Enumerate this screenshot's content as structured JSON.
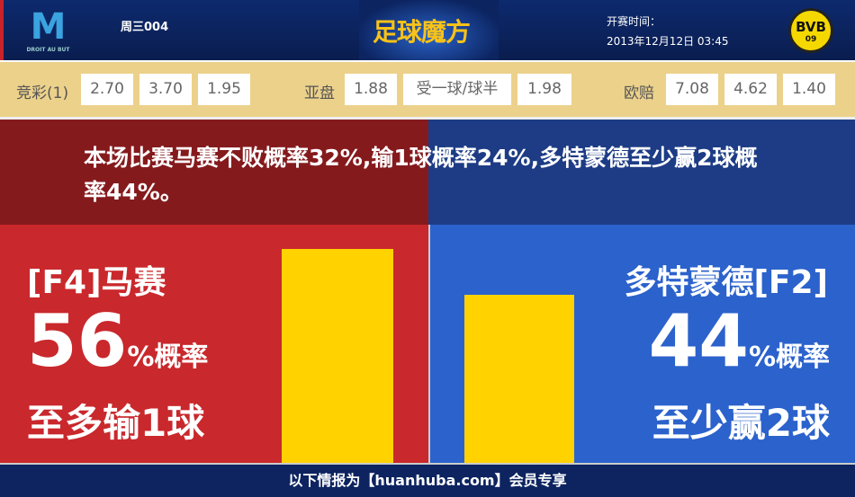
{
  "header": {
    "home_logo_text": "DROIT AU BUT",
    "match_no": "周三004",
    "brand": "足球魔方",
    "time_label": "开赛时间：",
    "time_value": "2013年12月12日 03:45",
    "away_logo_text": "BVB",
    "away_logo_sub": "09"
  },
  "odds": {
    "jingcai_label": "竞彩(1)",
    "jingcai": [
      "2.70",
      "3.70",
      "1.95"
    ],
    "yapan_label": "亚盘",
    "yapan": [
      "1.88",
      "受一球/球半",
      "1.98"
    ],
    "ouzhou_label": "欧赔",
    "ouzhou": [
      "7.08",
      "4.62",
      "1.40"
    ]
  },
  "summary": "本场比赛马赛不败概率32%,输1球概率24%,多特蒙德至少赢2球概率44%。",
  "home": {
    "team": "[F4]马赛",
    "percent": 56,
    "percent_text": "56",
    "unit": "%概率",
    "outcome": "至多输1球",
    "color": "#c9282c"
  },
  "away": {
    "team": "多特蒙德[F2]",
    "percent": 44,
    "percent_text": "44",
    "unit": "%概率",
    "outcome": "至少赢2球",
    "color": "#2b62cc"
  },
  "bar_color": "#ffd200",
  "footer": "以下情报为【huanhuba.com】会员专享"
}
